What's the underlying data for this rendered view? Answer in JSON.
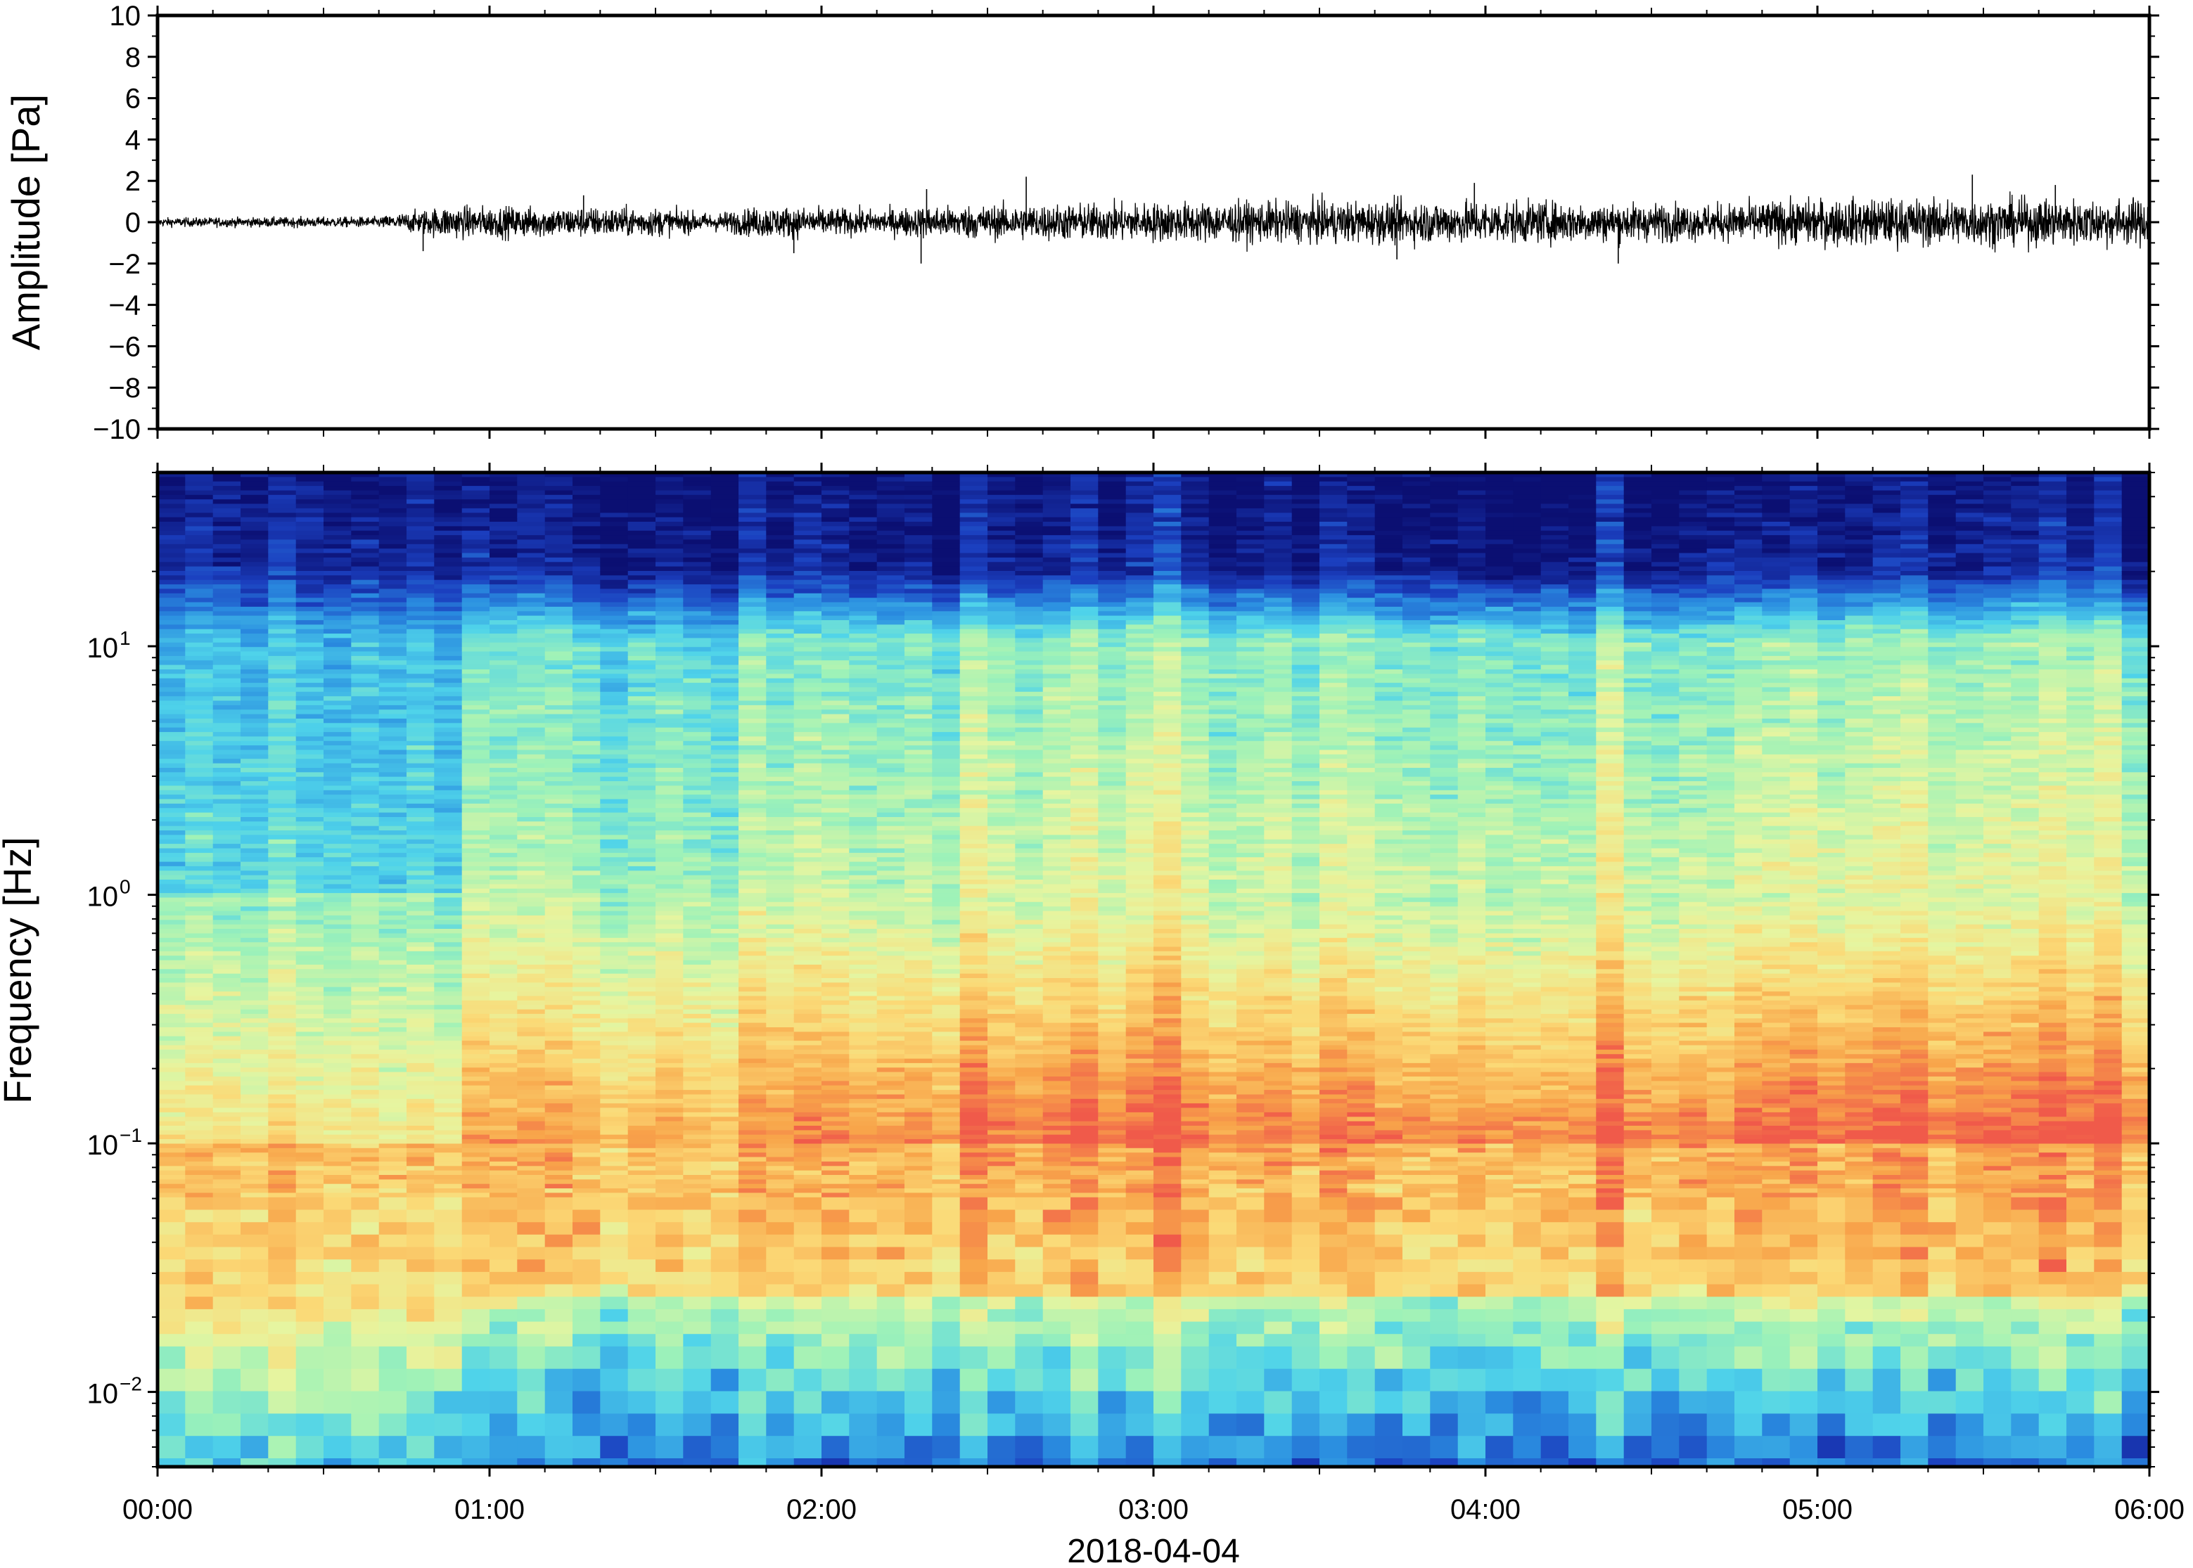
{
  "chart_data": [
    {
      "type": "line",
      "ylabel": "Amplitude [Pa]",
      "ylim": [
        -10,
        10
      ],
      "y_ticks": [
        10,
        8,
        6,
        4,
        2,
        0,
        -2,
        -4,
        -6,
        -8,
        -10
      ],
      "y_tick_labels": [
        "10",
        "8",
        "6",
        "4",
        "2",
        "0",
        "−2",
        "−4",
        "−6",
        "−8",
        "−10"
      ],
      "xlim": [
        "00:00",
        "06:00"
      ],
      "grid": false,
      "series": [
        {
          "description_type": "waveform",
          "color": "#000000",
          "envelope": [
            {
              "t": "00:00",
              "amp": 0.25
            },
            {
              "t": "00:40",
              "amp": 0.3
            },
            {
              "t": "00:52",
              "amp": 0.9
            },
            {
              "t": "01:30",
              "amp": 0.8
            },
            {
              "t": "01:40",
              "amp": 0.5
            },
            {
              "t": "01:50",
              "amp": 0.9
            },
            {
              "t": "02:10",
              "amp": 0.7
            },
            {
              "t": "02:20",
              "amp": 0.9
            },
            {
              "t": "03:00",
              "amp": 1.1
            },
            {
              "t": "04:00",
              "amp": 1.2
            },
            {
              "t": "04:40",
              "amp": 1.0
            },
            {
              "t": "05:00",
              "amp": 1.3
            },
            {
              "t": "06:00",
              "amp": 1.3
            }
          ],
          "spikes": [
            {
              "t": "00:48",
              "amp": -1.4
            },
            {
              "t": "01:17",
              "amp": 1.3
            },
            {
              "t": "01:55",
              "amp": -1.5
            },
            {
              "t": "02:18",
              "amp": -2.0
            },
            {
              "t": "02:19",
              "amp": 1.6
            },
            {
              "t": "02:37",
              "amp": 2.2
            },
            {
              "t": "03:44",
              "amp": -1.8
            },
            {
              "t": "03:58",
              "amp": 1.9
            },
            {
              "t": "04:24",
              "amp": -2.0
            },
            {
              "t": "05:28",
              "amp": 2.3
            },
            {
              "t": "05:43",
              "amp": 1.8
            }
          ]
        }
      ]
    },
    {
      "type": "heatmap",
      "ylabel": "Frequency [Hz]",
      "xlabel": "2018-04-04",
      "y_scale": "log",
      "ylim": [
        0.005,
        50
      ],
      "y_ticks": [
        {
          "value": 10,
          "base": "10",
          "exp": "1"
        },
        {
          "value": 1,
          "base": "10",
          "exp": "0"
        },
        {
          "value": 0.1,
          "base": "10",
          "exp": "−1"
        },
        {
          "value": 0.01,
          "base": "10",
          "exp": "−2"
        }
      ],
      "x_ticks": [
        "00:00",
        "01:00",
        "02:00",
        "03:00",
        "04:00",
        "05:00",
        "06:00"
      ],
      "xlim": [
        "00:00",
        "06:00"
      ],
      "colormap": [
        "#0b0f72",
        "#1b3fbf",
        "#2a8de0",
        "#4fd3ea",
        "#9ef2b8",
        "#e6f5a0",
        "#fbd976",
        "#f8a54a",
        "#f05a4a"
      ],
      "column_width_minutes": 5,
      "regimes": [
        {
          "from": "00:00",
          "to": "00:52",
          "intensity": 0.0
        },
        {
          "from": "00:52",
          "to": "01:50",
          "intensity": 0.6
        },
        {
          "from": "01:50",
          "to": "02:18",
          "intensity": 0.75
        },
        {
          "from": "02:18",
          "to": "04:40",
          "intensity": 0.9
        },
        {
          "from": "04:40",
          "to": "04:45",
          "intensity": 0.7
        },
        {
          "from": "04:45",
          "to": "06:00",
          "intensity": 1.0
        }
      ]
    }
  ]
}
